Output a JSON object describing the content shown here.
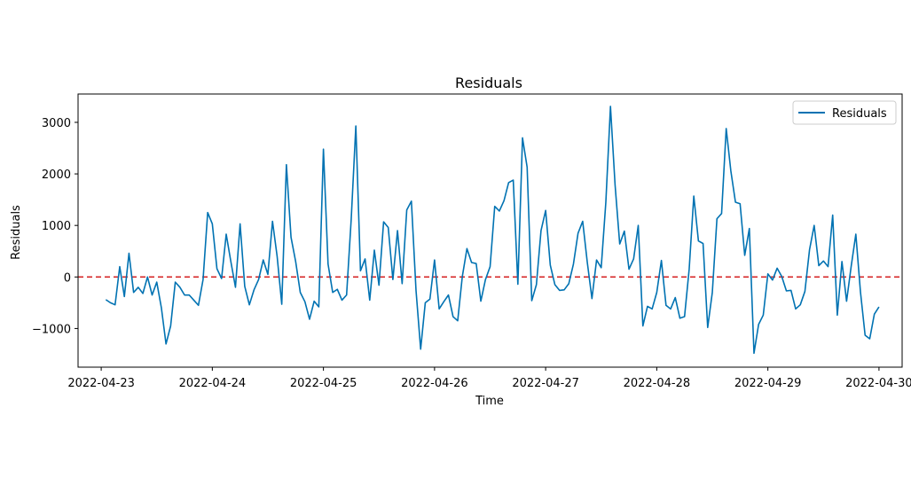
{
  "chart_data": {
    "type": "line",
    "title": "Residuals",
    "xlabel": "Time",
    "ylabel": "Residuals",
    "xlim": [
      "2022-04-22T19:00",
      "2022-04-30T05:00"
    ],
    "ylim": [
      -1750,
      3550
    ],
    "x_ticks": [
      "2022-04-23",
      "2022-04-24",
      "2022-04-25",
      "2022-04-26",
      "2022-04-27",
      "2022-04-28",
      "2022-04-29",
      "2022-04-30"
    ],
    "y_ticks": [
      -1000,
      0,
      1000,
      2000,
      3000
    ],
    "y_tick_labels": [
      "−1000",
      "0",
      "1000",
      "2000",
      "3000"
    ],
    "grid": false,
    "legend_position": "top-right",
    "reference_line": {
      "y": 0,
      "style": "dashed",
      "color": "#d62728"
    },
    "series": [
      {
        "name": "Residuals",
        "color": "#0072b2",
        "x_start": "2022-04-23T01:00",
        "x_step_hours": 1,
        "values": [
          -440,
          -500,
          -540,
          200,
          -380,
          460,
          -300,
          -200,
          -320,
          0,
          -350,
          -100,
          -600,
          -1300,
          -950,
          -100,
          -200,
          -350,
          -350,
          -450,
          -550,
          -50,
          1250,
          1030,
          160,
          -30,
          830,
          300,
          -200,
          1030,
          -180,
          -540,
          -250,
          -50,
          330,
          50,
          1080,
          400,
          -530,
          2180,
          770,
          300,
          -300,
          -480,
          -820,
          -470,
          -580,
          2480,
          250,
          -300,
          -240,
          -450,
          -350,
          1120,
          2930,
          120,
          350,
          -450,
          520,
          -160,
          1070,
          960,
          -50,
          900,
          -130,
          1300,
          1470,
          -260,
          -1400,
          -500,
          -430,
          330,
          -620,
          -480,
          -350,
          -770,
          -850,
          10,
          550,
          280,
          260,
          -470,
          -50,
          200,
          1370,
          1280,
          1480,
          1830,
          1880,
          -140,
          2700,
          2130,
          -460,
          -150,
          900,
          1290,
          230,
          -150,
          -260,
          -250,
          -130,
          250,
          850,
          1080,
          280,
          -420,
          330,
          180,
          1450,
          3310,
          1780,
          640,
          890,
          150,
          350,
          1000,
          -950,
          -570,
          -620,
          -300,
          320,
          -550,
          -620,
          -400,
          -800,
          -770,
          150,
          1570,
          700,
          650,
          -980,
          -300,
          1130,
          1230,
          2880,
          2060,
          1450,
          1420,
          420,
          940,
          -1480,
          -920,
          -740,
          60,
          -60,
          170,
          10,
          -270,
          -260,
          -620,
          -540,
          -280,
          530,
          1000,
          220,
          310,
          200,
          1200,
          -740,
          300,
          -470,
          210,
          830,
          -290,
          -1130,
          -1200,
          -720,
          -580
        ]
      }
    ]
  }
}
